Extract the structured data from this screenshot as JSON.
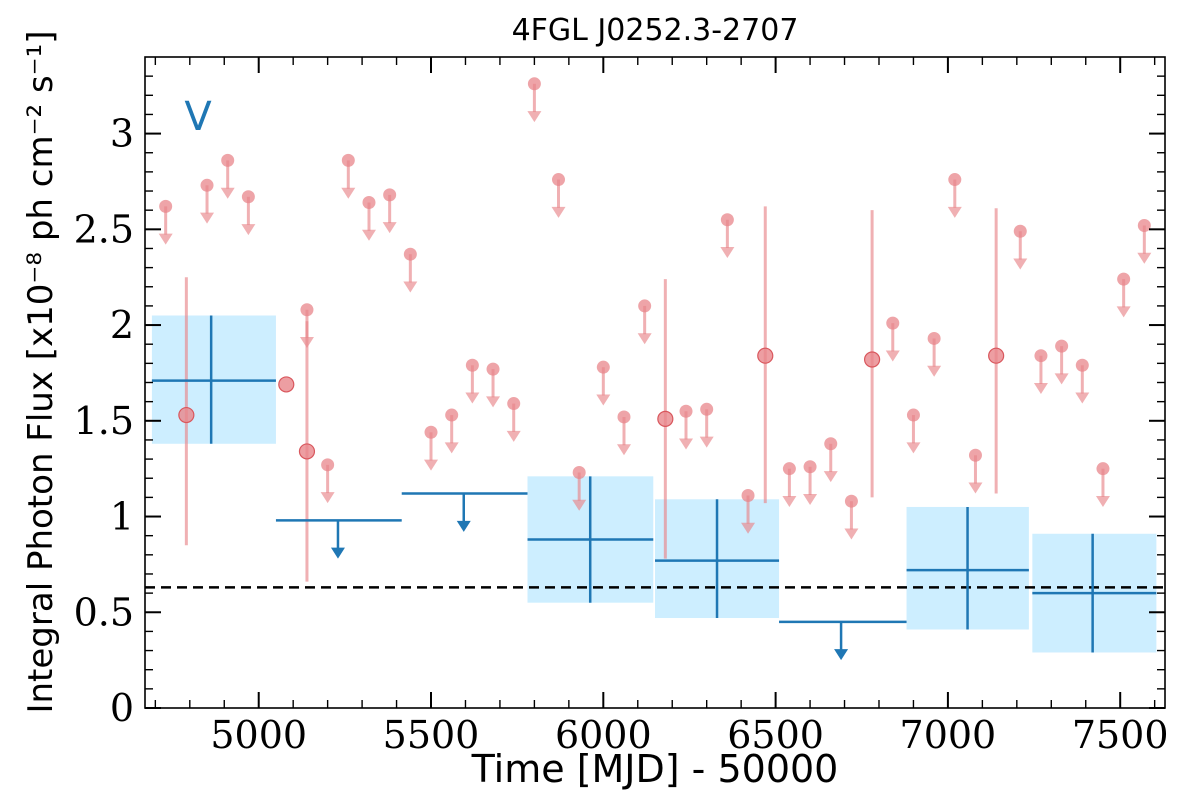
{
  "chart_data": {
    "type": "scatter",
    "title": "4FGL J0252.3-2707",
    "xlabel": "Time [MJD] - 50000",
    "ylabel": "Integral Photon Flux [x10⁻⁸ ph cm⁻² s⁻¹]",
    "xlim": [
      4670,
      7630
    ],
    "ylim": [
      0,
      3.4
    ],
    "xticks": [
      5000,
      5500,
      6000,
      6500,
      7000,
      7500
    ],
    "yticks": [
      0,
      0.5,
      1,
      1.5,
      2,
      2.5,
      3
    ],
    "ytick_labels": [
      "0",
      "0.5",
      "1",
      "1.5",
      "2",
      "2.5",
      "3"
    ],
    "annotation": "V",
    "reference_line": {
      "value": 0.63,
      "style": "dashed",
      "color": "#000000"
    },
    "colors": {
      "short_bins": "#e8868b",
      "long_bins": "#1f77b4",
      "band": "#cdeeff"
    },
    "series": [
      {
        "kind": "upper_limits",
        "color": "#e8868b",
        "x": [
          4730,
          4850,
          4910,
          4970,
          5140,
          5200,
          5260,
          5320,
          5380,
          5440,
          5500,
          5560,
          5620,
          5680,
          5740,
          5800,
          5870,
          5930,
          6000,
          6060,
          6120,
          6240,
          6300,
          6360,
          6420,
          6540,
          6600,
          6660,
          6720,
          6840,
          6900,
          6960,
          7020,
          7080,
          7210,
          7270,
          7330,
          7390,
          7450,
          7510,
          7570
        ],
        "y": [
          2.62,
          2.73,
          2.86,
          2.67,
          2.08,
          1.27,
          2.86,
          2.64,
          2.68,
          2.37,
          1.44,
          1.53,
          1.79,
          1.77,
          1.59,
          3.26,
          2.76,
          1.23,
          1.78,
          1.52,
          2.1,
          1.55,
          1.56,
          2.55,
          1.11,
          1.25,
          1.26,
          1.38,
          1.08,
          2.01,
          1.53,
          1.93,
          2.76,
          1.32,
          2.49,
          1.84,
          1.89,
          1.79,
          1.25,
          2.24,
          2.52
        ]
      },
      {
        "kind": "detections",
        "color": "#e8868b",
        "x": [
          4790,
          5080,
          5140,
          6180,
          6470,
          6780,
          7140
        ],
        "y": [
          1.53,
          1.69,
          1.34,
          1.51,
          1.84,
          1.82,
          1.84
        ],
        "y_low": [
          0.85,
          1.69,
          0.66,
          0.78,
          1.07,
          1.1,
          1.12
        ],
        "y_high": [
          2.25,
          1.69,
          2.02,
          2.24,
          2.62,
          2.6,
          2.61
        ]
      },
      {
        "kind": "binned_detections",
        "color": "#1f77b4",
        "x": [
          4862,
          5962,
          6330,
          7057,
          7420
        ],
        "x_low": [
          4690,
          5780,
          6150,
          6880,
          7245
        ],
        "x_high": [
          5050,
          6145,
          6510,
          7235,
          7605
        ],
        "y": [
          1.71,
          0.88,
          0.77,
          0.72,
          0.6
        ],
        "y_low": [
          1.38,
          0.55,
          0.47,
          0.41,
          0.29
        ],
        "y_high": [
          2.05,
          1.21,
          1.09,
          1.05,
          0.91
        ]
      },
      {
        "kind": "binned_upper_limits",
        "color": "#1f77b4",
        "x": [
          5230,
          5595,
          6690
        ],
        "x_low": [
          5050,
          5415,
          6510
        ],
        "x_high": [
          5415,
          5780,
          6880
        ],
        "y": [
          0.98,
          1.12,
          0.45
        ]
      }
    ]
  }
}
